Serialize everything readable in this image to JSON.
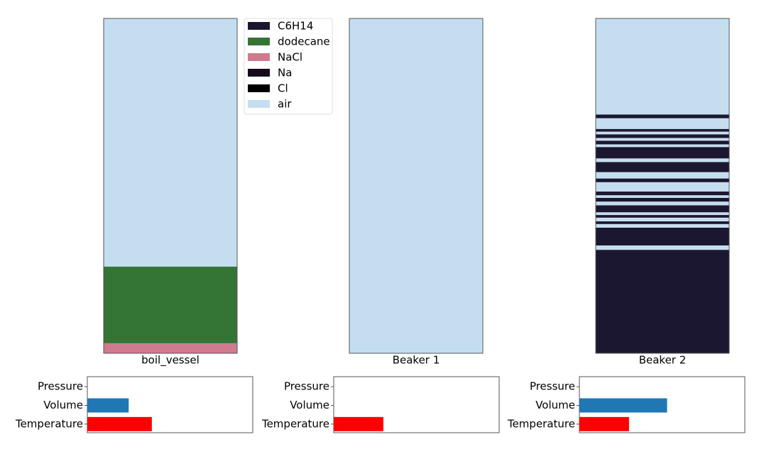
{
  "legend": {
    "items": [
      {
        "name": "C6H14",
        "color": "#1c1731"
      },
      {
        "name": "dodecane",
        "color": "#347435"
      },
      {
        "name": "NaCl",
        "color": "#d07a8e"
      },
      {
        "name": "Na",
        "color": "#170a1c"
      },
      {
        "name": "Cl",
        "color": "#000000"
      },
      {
        "name": "air",
        "color": "#c4def0"
      }
    ]
  },
  "chart_data": [
    {
      "type": "layers",
      "label": "boil_vessel",
      "ylim": [
        0,
        100
      ],
      "layers": [
        {
          "material": "NaCl",
          "value": 3.0
        },
        {
          "material": "dodecane",
          "value": 22.9
        },
        {
          "material": "air",
          "value": 74.1
        }
      ]
    },
    {
      "type": "layers",
      "label": "Beaker 1",
      "ylim": [
        0,
        100
      ],
      "layers": [
        {
          "material": "air",
          "value": 100
        }
      ]
    },
    {
      "type": "layers",
      "label": "Beaker 2",
      "ylim": [
        0,
        100
      ],
      "layers": [
        {
          "material": "C6H14",
          "value": 30.9
        },
        {
          "material": "air",
          "value": 1.3
        },
        {
          "material": "C6H14",
          "value": 5.3
        },
        {
          "material": "air",
          "value": 1.1
        },
        {
          "material": "C6H14",
          "value": 0.8
        },
        {
          "material": "air",
          "value": 1.1
        },
        {
          "material": "C6H14",
          "value": 0.8
        },
        {
          "material": "air",
          "value": 0.8
        },
        {
          "material": "C6H14",
          "value": 2.1
        },
        {
          "material": "air",
          "value": 1.1
        },
        {
          "material": "C6H14",
          "value": 1.1
        },
        {
          "material": "air",
          "value": 0.8
        },
        {
          "material": "C6H14",
          "value": 1.1
        },
        {
          "material": "air",
          "value": 2.8
        },
        {
          "material": "C6H14",
          "value": 1.1
        },
        {
          "material": "air",
          "value": 1.9
        },
        {
          "material": "C6H14",
          "value": 3.0
        },
        {
          "material": "air",
          "value": 1.1
        },
        {
          "material": "C6H14",
          "value": 3.4
        },
        {
          "material": "air",
          "value": 0.8
        },
        {
          "material": "C6H14",
          "value": 1.1
        },
        {
          "material": "air",
          "value": 0.8
        },
        {
          "material": "C6H14",
          "value": 1.1
        },
        {
          "material": "air",
          "value": 0.8
        },
        {
          "material": "C6H14",
          "value": 0.8
        },
        {
          "material": "air",
          "value": 3.2
        },
        {
          "material": "C6H14",
          "value": 1.1
        },
        {
          "material": "air",
          "value": 28.7
        }
      ]
    },
    {
      "type": "barh",
      "categories": [
        "Pressure",
        "Volume",
        "Temperature"
      ],
      "values": [
        0,
        0.25,
        0.39
      ],
      "colors": [
        "#1f77b4",
        "#1f77b4",
        "#ff0000"
      ],
      "xlim": [
        0,
        1
      ]
    },
    {
      "type": "barh",
      "categories": [
        "Pressure",
        "Volume",
        "Temperature"
      ],
      "values": [
        0,
        0,
        0.3
      ],
      "colors": [
        "#1f77b4",
        "#1f77b4",
        "#ff0000"
      ],
      "xlim": [
        0,
        1
      ]
    },
    {
      "type": "barh",
      "categories": [
        "Pressure",
        "Volume",
        "Temperature"
      ],
      "values": [
        0,
        0.53,
        0.3
      ],
      "colors": [
        "#1f77b4",
        "#1f77b4",
        "#ff0000"
      ],
      "xlim": [
        0,
        1
      ]
    }
  ]
}
